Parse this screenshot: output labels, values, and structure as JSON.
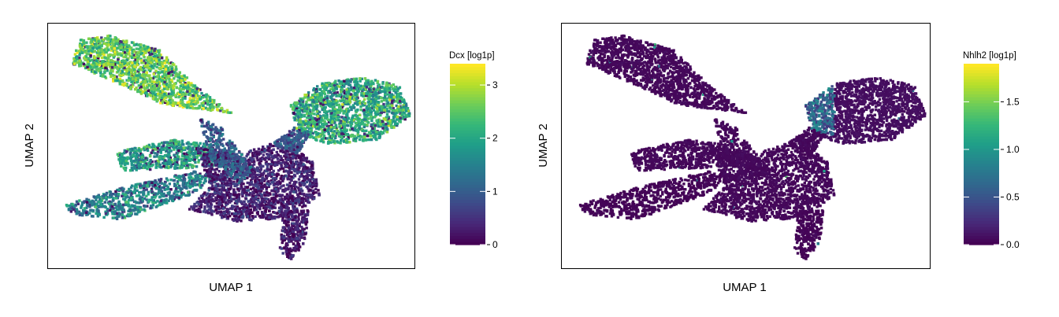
{
  "chart_data": [
    {
      "type": "scatter",
      "title": "",
      "xlabel": "UMAP 1",
      "ylabel": "UMAP 2",
      "grid": false,
      "axis_ticks": false,
      "colorbar": {
        "label": "Dcx [log1p]",
        "colormap": "viridis",
        "range": [
          0,
          3.4
        ],
        "ticks": [
          0,
          1,
          2,
          3
        ],
        "tick_labels": [
          "0",
          "1",
          "2",
          "3"
        ]
      },
      "color_levels": {
        "upper_left_lobe": 2.6,
        "far_left_arm": 1.5,
        "middle_left_band": 1.9,
        "upper_right_lobe": 2.1,
        "central_body": 0.3,
        "lower_tail": 0.2
      }
    },
    {
      "type": "scatter",
      "title": "",
      "xlabel": "UMAP 1",
      "ylabel": "UMAP 2",
      "grid": false,
      "axis_ticks": false,
      "colorbar": {
        "label": "Nhlh2 [log1p]",
        "colormap": "viridis",
        "range": [
          0,
          1.9
        ],
        "ticks": [
          0,
          0.5,
          1,
          1.5
        ],
        "tick_labels": [
          "0.0",
          "0.5",
          "1.0",
          "1.5"
        ]
      },
      "color_levels": {
        "upper_left_lobe": 0.02,
        "far_left_arm": 0.0,
        "middle_left_band": 0.02,
        "upper_right_lobe_left_edge": 0.8,
        "upper_right_lobe": 0.05,
        "central_body": 0.02,
        "lower_tail": 0.0
      }
    }
  ]
}
